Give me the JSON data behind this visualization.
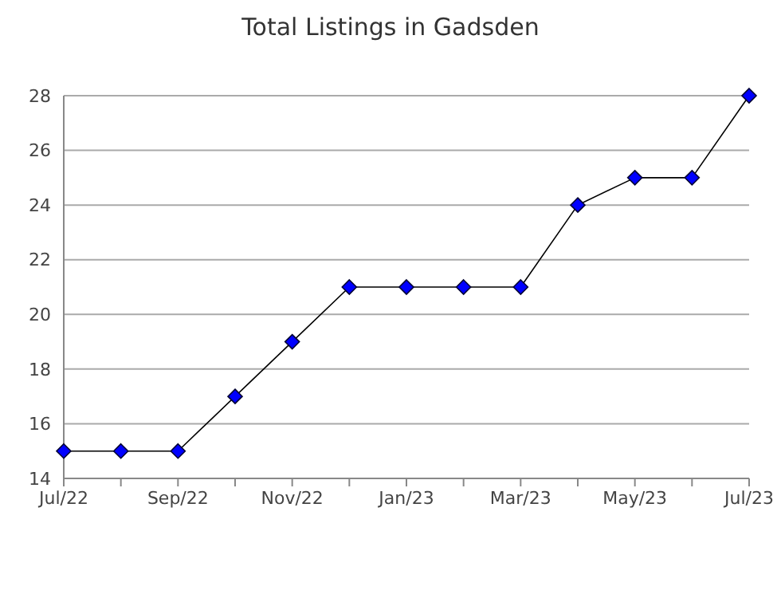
{
  "chart_data": {
    "type": "line",
    "title": "Total Listings in Gadsden",
    "categories": [
      "Jul/22",
      null,
      "Sep/22",
      null,
      "Nov/22",
      null,
      "Jan/23",
      null,
      "Mar/23",
      null,
      "May/23",
      null,
      "Jul/23"
    ],
    "series": [
      {
        "color": "#0000ff",
        "values": [
          15,
          15,
          15,
          17,
          19,
          21,
          21,
          21,
          21,
          24,
          25,
          25,
          28
        ]
      }
    ],
    "ylim": [
      14,
      28
    ],
    "yticks": [
      14,
      16,
      18,
      20,
      22,
      24,
      26,
      28
    ],
    "grid": "y",
    "marker": "diamond",
    "line_style": "solid"
  }
}
